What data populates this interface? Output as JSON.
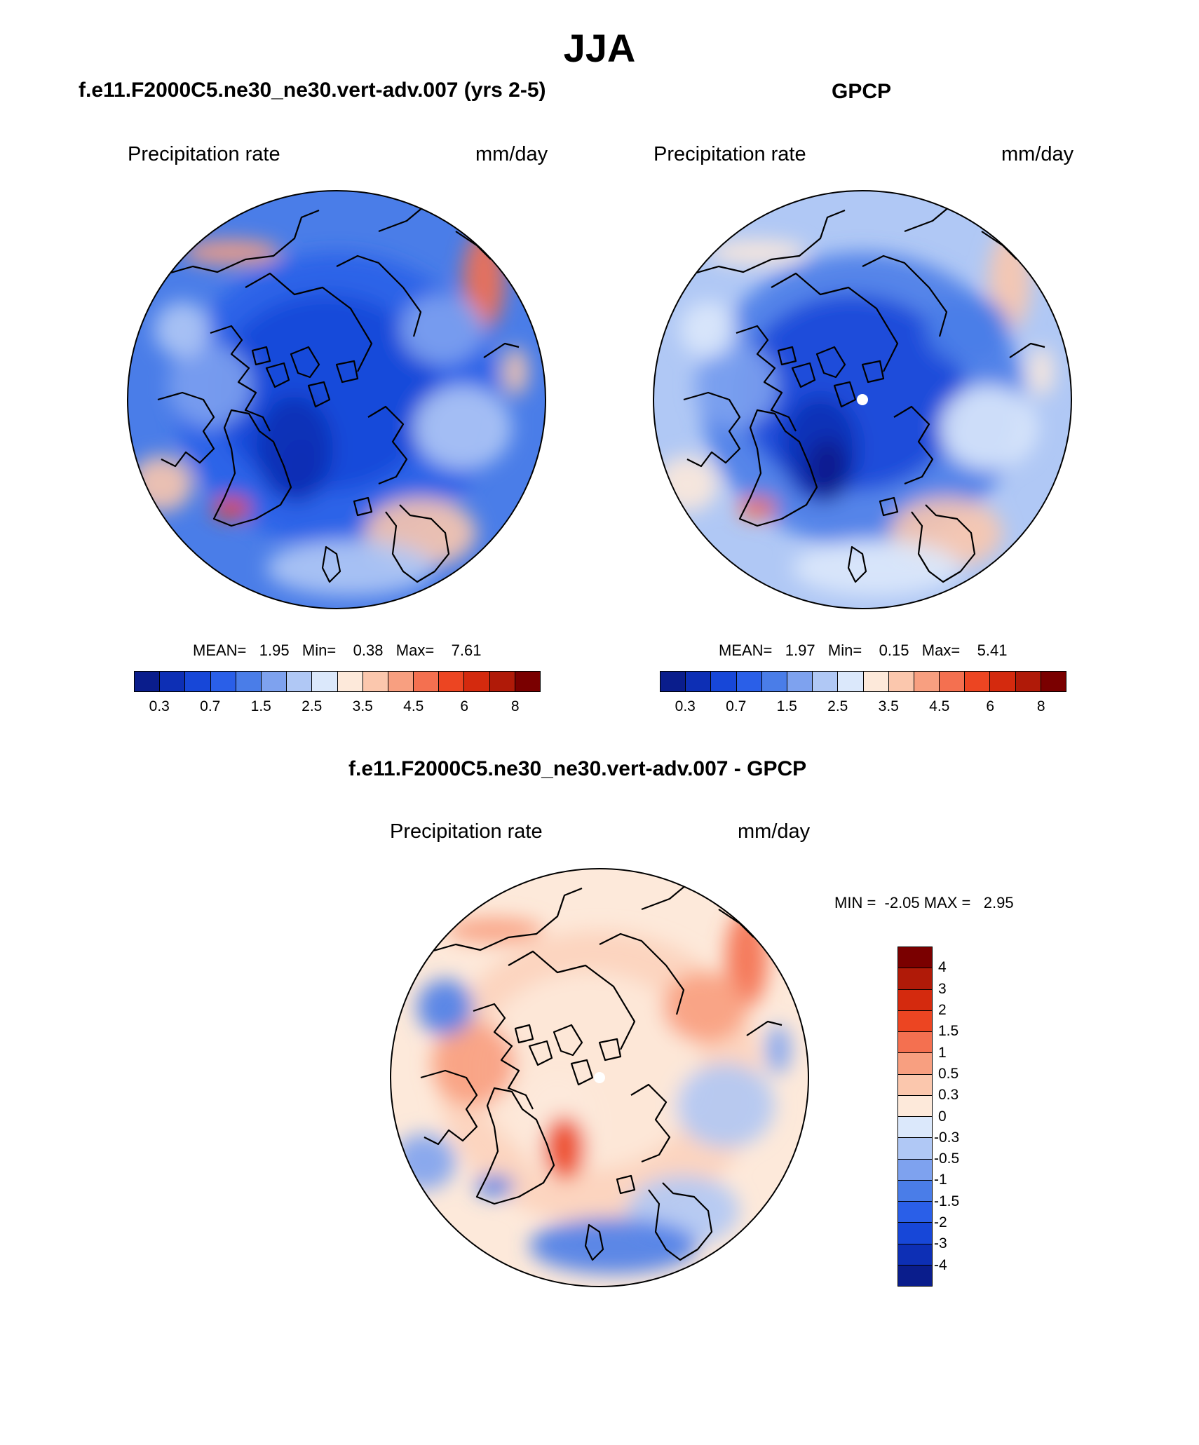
{
  "main_title": "JJA",
  "panels": [
    {
      "title": "f.e11.F2000C5.ne30_ne30.vert-adv.007 (yrs 2-5)",
      "left_label": "Precipitation rate",
      "right_label": "mm/day",
      "stats": "MEAN=   1.95   Min=    0.38   Max=    7.61",
      "colors": [
        "#0a1d8c",
        "#0d2fb5",
        "#1747d8",
        "#2a5fe8",
        "#4a7de8",
        "#7ea2ef",
        "#b0c8f5",
        "#dbe8fb",
        "#fde9da",
        "#fbc7ad",
        "#f89f80",
        "#f47050",
        "#ec4522",
        "#d42a0e",
        "#b01a08",
        "#7a0000"
      ],
      "field": [
        {
          "color": "#4a7de8",
          "opacity": 1.0
        },
        {
          "color": "#2a5fe8",
          "opacity": 0.9
        },
        {
          "color": "#1747d8",
          "opacity": 0.85
        },
        {
          "color": "#0d2fb5",
          "opacity": 0.9
        }
      ],
      "blobs": [
        {
          "color": "#f89f80"
        },
        {
          "color": "#f47050"
        },
        {
          "color": "#fbc7ad"
        },
        {
          "color": "#ec4522"
        },
        {
          "color": "#fbc7ad"
        },
        {
          "color": "#b0c8f5"
        },
        {
          "color": "#7ea2ef"
        },
        {
          "color": "#b0c8f5"
        },
        {
          "color": "#0d2fb5"
        },
        {
          "color": "#fbc7ad"
        },
        {
          "color": "#7ea2ef"
        },
        {
          "color": "#b0c8f5"
        }
      ]
    },
    {
      "title": "GPCP",
      "left_label": "Precipitation rate",
      "right_label": "mm/day",
      "stats": "MEAN=   1.97   Min=    0.15   Max=    5.41",
      "colors": [
        "#0a1d8c",
        "#0d2fb5",
        "#1747d8",
        "#2a5fe8",
        "#4a7de8",
        "#7ea2ef",
        "#b0c8f5",
        "#dbe8fb",
        "#fde9da",
        "#fbc7ad",
        "#f89f80",
        "#f47050",
        "#ec4522",
        "#d42a0e",
        "#b01a08",
        "#7a0000"
      ],
      "field": [
        {
          "color": "#b0c8f5",
          "opacity": 1.0
        },
        {
          "color": "#4a7de8",
          "opacity": 0.9
        },
        {
          "color": "#1747d8",
          "opacity": 0.9
        },
        {
          "color": "#0d2fb5",
          "opacity": 0.9
        }
      ],
      "blobs": [
        {
          "color": "#fde9da"
        },
        {
          "color": "#fbc7ad"
        },
        {
          "color": "#fde9da"
        },
        {
          "color": "#f47050"
        },
        {
          "color": "#fbc7ad"
        },
        {
          "color": "#dbe8fb"
        },
        {
          "color": "#4a7de8"
        },
        {
          "color": "#dbe8fb"
        },
        {
          "color": "#0a1d8c"
        },
        {
          "color": "#fde9da"
        },
        {
          "color": "#7ea2ef"
        },
        {
          "color": "#dbe8fb"
        }
      ]
    }
  ],
  "colorbar": {
    "tick_labels": [
      "0.3",
      "0.7",
      "1.5",
      "2.5",
      "3.5",
      "4.5",
      "6",
      "8"
    ]
  },
  "diff_panel": {
    "title": "f.e11.F2000C5.ne30_ne30.vert-adv.007 - GPCP",
    "left_label": "Precipitation rate",
    "right_label": "mm/day",
    "minmax": "MIN =  -2.05 MAX =   2.95",
    "colors": [
      "#7a0000",
      "#b01a08",
      "#d42a0e",
      "#ec4522",
      "#f47050",
      "#f89f80",
      "#fbc7ad",
      "#fde9da",
      "#dbe8fb",
      "#b0c8f5",
      "#7ea2ef",
      "#4a7de8",
      "#2a5fe8",
      "#1747d8",
      "#0d2fb5",
      "#0a1d8c"
    ],
    "tick_labels": [
      "4",
      "3",
      "2",
      "1.5",
      "1",
      "0.5",
      "0.3",
      "0",
      "-0.3",
      "-0.5",
      "-1",
      "-1.5",
      "-2",
      "-3",
      "-4"
    ],
    "field": [
      {
        "color": "#fde9da",
        "opacity": 1.0
      },
      {
        "color": "#fbc7ad",
        "opacity": 0.6
      },
      {
        "color": "#fde9da",
        "opacity": 0.9
      },
      {
        "color": "#fde9da",
        "opacity": 0.9
      }
    ],
    "blobs": [
      {
        "color": "#f89f80"
      },
      {
        "color": "#f47050"
      },
      {
        "color": "#7ea2ef"
      },
      {
        "color": "#4a7de8"
      },
      {
        "color": "#b0c8f5"
      },
      {
        "color": "#4a7de8"
      },
      {
        "color": "#f89f80"
      },
      {
        "color": "#b0c8f5"
      },
      {
        "color": "#ec4522"
      },
      {
        "color": "#7ea2ef"
      },
      {
        "color": "#f89f80"
      },
      {
        "color": "#4a7de8"
      }
    ]
  }
}
